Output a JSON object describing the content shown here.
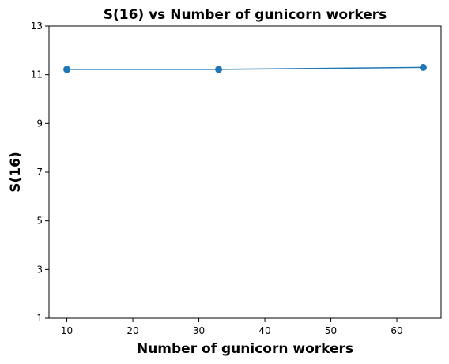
{
  "chart_data": {
    "type": "line",
    "title": "S(16) vs Number of gunicorn workers",
    "xlabel": "Number of gunicorn workers",
    "ylabel": "S(16)",
    "xlim": [
      7.3,
      66.7
    ],
    "ylim": [
      1,
      13
    ],
    "xticks": [
      10,
      20,
      30,
      40,
      50,
      60
    ],
    "yticks": [
      1,
      3,
      5,
      7,
      9,
      11,
      13
    ],
    "grid": false,
    "series": [
      {
        "color": "#1f77b4",
        "marker": "circle",
        "points": [
          {
            "x": 10,
            "y": 11.22
          },
          {
            "x": 33,
            "y": 11.22
          },
          {
            "x": 64,
            "y": 11.3
          }
        ]
      }
    ]
  }
}
